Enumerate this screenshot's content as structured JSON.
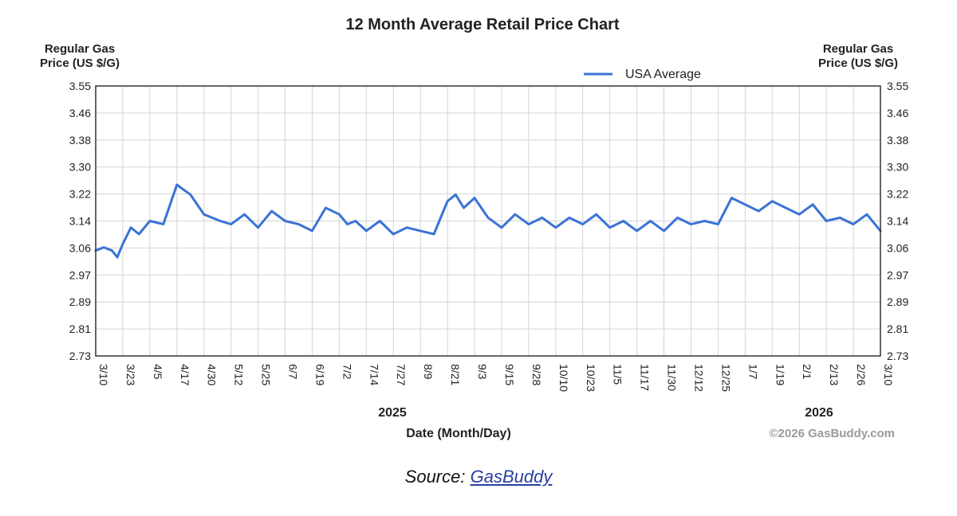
{
  "chart_data": {
    "type": "line",
    "title": "12 Month Average Retail Price Chart",
    "ylabel": "Regular Gas Price (US $/G)",
    "ylabel_lines": [
      "Regular Gas",
      "Price (US $/G)"
    ],
    "xlabel": "Date (Month/Day)",
    "ylim": [
      2.73,
      3.55
    ],
    "yticks": [
      "3.55",
      "3.46",
      "3.38",
      "3.30",
      "3.22",
      "3.14",
      "3.06",
      "2.97",
      "2.89",
      "2.81",
      "2.73"
    ],
    "categories": [
      "3/10",
      "3/23",
      "4/5",
      "4/17",
      "4/30",
      "5/12",
      "5/25",
      "6/7",
      "6/19",
      "7/2",
      "7/14",
      "7/27",
      "8/9",
      "8/21",
      "9/3",
      "9/15",
      "9/28",
      "10/10",
      "10/23",
      "11/5",
      "11/17",
      "11/30",
      "12/12",
      "12/25",
      "1/7",
      "1/19",
      "2/1",
      "2/13",
      "2/26",
      "3/10"
    ],
    "year_labels": [
      "2025",
      "2026"
    ],
    "grid": true,
    "legend": "top-center",
    "series": [
      {
        "name": "USA Average",
        "color": "#3a73d6",
        "x": [
          0,
          0.3,
          0.6,
          0.8,
          1.0,
          1.3,
          1.6,
          2,
          2.5,
          3,
          3.5,
          4,
          4.3,
          4.6,
          5,
          5.5,
          6,
          6.5,
          7,
          7.5,
          8,
          8.5,
          9,
          9.3,
          9.6,
          10,
          10.5,
          11,
          11.5,
          12,
          12.5,
          13,
          13.3,
          13.6,
          14,
          14.5,
          15,
          15.5,
          16,
          16.5,
          17,
          17.5,
          18,
          18.5,
          19,
          19.5,
          20,
          20.5,
          21,
          21.5,
          22,
          22.5,
          23,
          23.5,
          24,
          24.5,
          25,
          25.5,
          26,
          26.5,
          27,
          27.5,
          28,
          28.5,
          29
        ],
        "values": [
          3.05,
          3.06,
          3.05,
          3.03,
          3.07,
          3.12,
          3.1,
          3.14,
          3.13,
          3.25,
          3.22,
          3.16,
          3.15,
          3.14,
          3.13,
          3.16,
          3.12,
          3.17,
          3.14,
          3.13,
          3.11,
          3.18,
          3.16,
          3.13,
          3.14,
          3.11,
          3.14,
          3.1,
          3.12,
          3.11,
          3.1,
          3.2,
          3.22,
          3.18,
          3.21,
          3.15,
          3.12,
          3.16,
          3.13,
          3.15,
          3.12,
          3.15,
          3.13,
          3.16,
          3.12,
          3.14,
          3.11,
          3.14,
          3.11,
          3.15,
          3.13,
          3.14,
          3.13,
          3.21,
          3.19,
          3.17,
          3.2,
          3.18,
          3.16,
          3.19,
          3.14,
          3.15,
          3.13,
          3.16,
          3.11
        ]
      }
    ],
    "series_full_note": ""
  },
  "watermark": "©2026 GasBuddy.com",
  "source": {
    "prefix": "Source: ",
    "link_text": "GasBuddy"
  }
}
